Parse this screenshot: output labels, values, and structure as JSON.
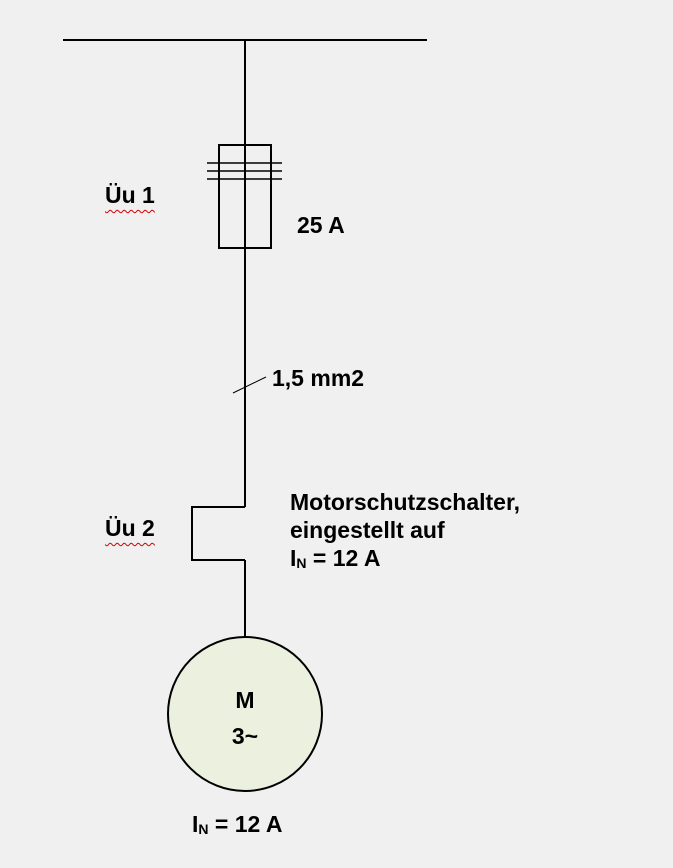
{
  "fuse": {
    "label": "Üu 1",
    "rating": "25 A"
  },
  "cable": {
    "cross_section": "1,5 mm2"
  },
  "motor_protection": {
    "label": "Üu 2",
    "description_line1": "Motorschutzschalter,",
    "description_line2": "eingestellt auf",
    "setting_symbol": "I",
    "setting_sub": "N",
    "setting_value": " = 12 A"
  },
  "motor": {
    "symbol": "M",
    "phases": "3~",
    "rated_symbol": "I",
    "rated_sub": "N",
    "rated_value": " = 12 A"
  },
  "colors": {
    "background": "#f0f0f0",
    "line": "#000000",
    "motor_fill": "#ebf1de",
    "spellcheck_underline": "#d00000"
  }
}
